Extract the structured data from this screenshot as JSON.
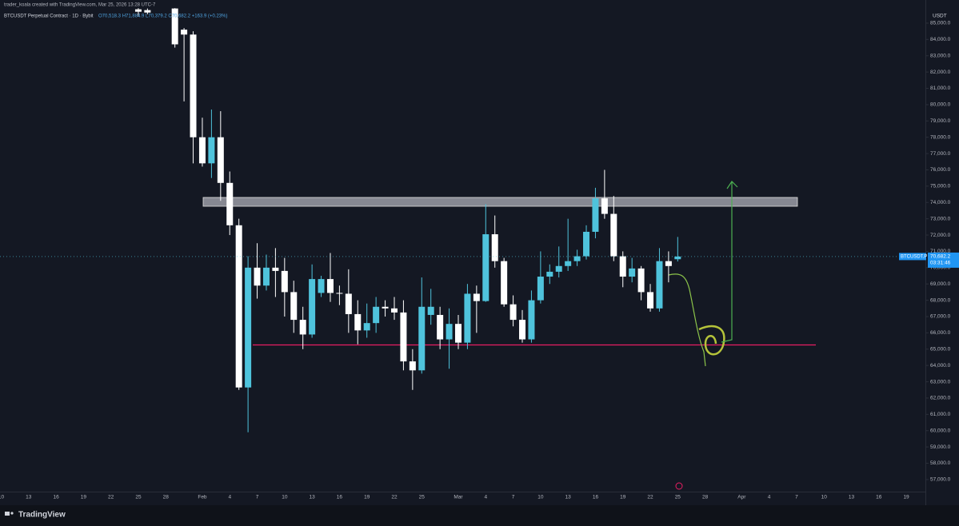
{
  "header": {
    "credit": "trader_koala created with TradingView.com, Mar 25, 2026 13:28 UTC-7",
    "symbol": "BTCUSDT Perpetual Contract · 1D · Bybit",
    "ohlc": "O70,518.3  H71,884.9  L70,379.2  C70,682.2  +163.9 (+0.23%)",
    "currency": "USDT",
    "brand": "TradingView"
  },
  "chart_data": {
    "type": "candlestick",
    "categories": [
      "10",
      null,
      null,
      "13",
      null,
      null,
      "16",
      null,
      null,
      "19",
      null,
      null,
      "22",
      null,
      null,
      "25",
      null,
      null,
      "28",
      null,
      null,
      null,
      "Feb",
      null,
      null,
      "4",
      null,
      null,
      "7",
      null,
      null,
      "10",
      null,
      null,
      "13",
      null,
      null,
      "16",
      null,
      null,
      "19",
      null,
      null,
      "22",
      null,
      null,
      "25",
      null,
      null,
      null,
      "Mar",
      null,
      null,
      "4",
      null,
      null,
      "7",
      null,
      null,
      "10",
      null,
      null,
      "13",
      null,
      null,
      "16",
      null,
      null,
      "19",
      null,
      null,
      "22",
      null,
      null,
      "25",
      null,
      null,
      "28",
      null,
      null,
      null,
      "Apr",
      null,
      null,
      "4",
      null,
      null,
      "7",
      null,
      null,
      "10",
      null,
      null,
      "13",
      null,
      null,
      "16",
      null,
      null,
      "19"
    ],
    "open": [
      null,
      null,
      null,
      null,
      null,
      null,
      null,
      null,
      null,
      null,
      null,
      null,
      null,
      null,
      null,
      85850,
      85800,
      null,
      null,
      85900,
      84600,
      84300,
      78000,
      76400,
      78000,
      75200,
      72600,
      62650,
      70000,
      68900,
      70000,
      69800,
      68500,
      66800,
      65900,
      68450,
      69300,
      68450,
      68400,
      67150,
      66150,
      66600,
      67600,
      67500,
      67250,
      64250,
      63700,
      67100,
      67100,
      65600,
      66550,
      65400,
      68400,
      67950,
      72050,
      70400,
      67750,
      66800,
      65600,
      68000,
      69450,
      69750,
      70100,
      70400,
      70700,
      72200,
      74250,
      73300,
      70700,
      69450,
      69950,
      68500,
      67500,
      70400,
      70518.3,
      null,
      null,
      null,
      null,
      null,
      null,
      null,
      null,
      null,
      null,
      null,
      null,
      null,
      null,
      null,
      null,
      null,
      null,
      null,
      null,
      null,
      null,
      null,
      null,
      null
    ],
    "high": [
      null,
      null,
      null,
      null,
      null,
      null,
      null,
      null,
      null,
      null,
      null,
      null,
      null,
      null,
      null,
      85920,
      85900,
      null,
      null,
      85920,
      84700,
      84500,
      79200,
      79700,
      79600,
      75900,
      73000,
      70700,
      71500,
      70800,
      71200,
      70600,
      69200,
      67600,
      70200,
      69500,
      70900,
      68900,
      69900,
      68000,
      67800,
      68200,
      68000,
      68200,
      68000,
      65000,
      69400,
      68700,
      67600,
      67500,
      67100,
      69000,
      68900,
      73900,
      73200,
      70600,
      68300,
      67400,
      68600,
      71000,
      70200,
      71300,
      73000,
      71100,
      72600,
      74900,
      76000,
      74400,
      71000,
      70600,
      70100,
      69000,
      71200,
      71000,
      71884.9,
      null,
      null,
      null,
      null,
      null,
      null,
      null,
      null,
      null,
      null,
      null,
      null,
      null,
      null,
      null,
      null,
      null,
      null,
      null,
      null,
      null,
      null,
      null,
      null,
      null
    ],
    "low": [
      null,
      null,
      null,
      null,
      null,
      null,
      null,
      null,
      null,
      null,
      null,
      null,
      null,
      null,
      null,
      85400,
      85550,
      null,
      null,
      83500,
      80200,
      76400,
      76200,
      75500,
      74100,
      72000,
      62500,
      59900,
      68100,
      68600,
      68200,
      67000,
      66000,
      65000,
      65700,
      68200,
      67900,
      67700,
      66000,
      65300,
      65700,
      66000,
      67000,
      66800,
      63700,
      62500,
      63500,
      66500,
      65000,
      63800,
      65000,
      65000,
      66000,
      67900,
      70000,
      67600,
      66400,
      65400,
      65400,
      67800,
      69000,
      69400,
      69800,
      70100,
      70500,
      71800,
      73000,
      70400,
      68800,
      69100,
      68000,
      67300,
      67300,
      69100,
      70379.2,
      null,
      null,
      null,
      null,
      null,
      null,
      null,
      null,
      null,
      null,
      null,
      null,
      null,
      null,
      null,
      null,
      null,
      null,
      null,
      null,
      null,
      null,
      null,
      null,
      null
    ],
    "close": [
      null,
      null,
      null,
      null,
      null,
      null,
      null,
      null,
      null,
      null,
      null,
      null,
      null,
      null,
      null,
      85700,
      85650,
      null,
      null,
      83700,
      84300,
      78000,
      76400,
      78000,
      75200,
      72600,
      62650,
      70000,
      68900,
      70000,
      69800,
      68500,
      66800,
      65900,
      69300,
      69300,
      68450,
      68400,
      67150,
      66150,
      66600,
      67600,
      67500,
      67250,
      64250,
      63700,
      67600,
      67600,
      65600,
      66550,
      65400,
      68400,
      67950,
      72050,
      70400,
      67750,
      66800,
      65600,
      68000,
      69450,
      69750,
      70100,
      70400,
      70700,
      72200,
      74250,
      73300,
      70700,
      69450,
      69950,
      68500,
      67500,
      70400,
      70100,
      70682.2,
      null,
      null,
      null,
      null,
      null,
      null,
      null,
      null,
      null,
      null,
      null,
      null,
      null,
      null,
      null,
      null,
      null,
      null,
      null,
      null,
      null,
      null,
      null,
      null,
      null
    ],
    "up_color": "#4fc3dc",
    "down_color": "#ffffff",
    "ylim": [
      56260,
      85930
    ],
    "yticks": [
      {
        "value": 57000,
        "label": "57,000.0"
      },
      {
        "value": 58000,
        "label": "58,000.0"
      },
      {
        "value": 59000,
        "label": "59,000.0"
      },
      {
        "value": 60000,
        "label": "60,000.0"
      },
      {
        "value": 61000,
        "label": "61,000.0"
      },
      {
        "value": 62000,
        "label": "62,000.0"
      },
      {
        "value": 63000,
        "label": "63,000.0"
      },
      {
        "value": 64000,
        "label": "64,000.0"
      },
      {
        "value": 65000,
        "label": "65,000.0"
      },
      {
        "value": 66000,
        "label": "66,000.0"
      },
      {
        "value": 67000,
        "label": "67,000.0"
      },
      {
        "value": 68000,
        "label": "68,000.0"
      },
      {
        "value": 69000,
        "label": "69,000.0"
      },
      {
        "value": 70000,
        "label": "70,000.0"
      },
      {
        "value": 71000,
        "label": "71,000.0"
      },
      {
        "value": 72000,
        "label": "72,000.0"
      },
      {
        "value": 73000,
        "label": "73,000.0"
      },
      {
        "value": 74000,
        "label": "74,000.0"
      },
      {
        "value": 75000,
        "label": "75,000.0"
      },
      {
        "value": 76000,
        "label": "76,000.0"
      },
      {
        "value": 77000,
        "label": "77,000.0"
      },
      {
        "value": 78000,
        "label": "78,000.0"
      },
      {
        "value": 79000,
        "label": "79,000.0"
      },
      {
        "value": 80000,
        "label": "80,000.0"
      },
      {
        "value": 81000,
        "label": "81,000.0"
      },
      {
        "value": 82000,
        "label": "82,000.0"
      },
      {
        "value": 83000,
        "label": "83,000.0"
      },
      {
        "value": 84000,
        "label": "84,000.0"
      },
      {
        "value": 85000,
        "label": "85,000.0"
      }
    ],
    "last_price": {
      "symbol": "BTCUSDT.P",
      "value": 70682.2,
      "label": "70,682.2",
      "countdown": "03:31:46"
    }
  }
}
